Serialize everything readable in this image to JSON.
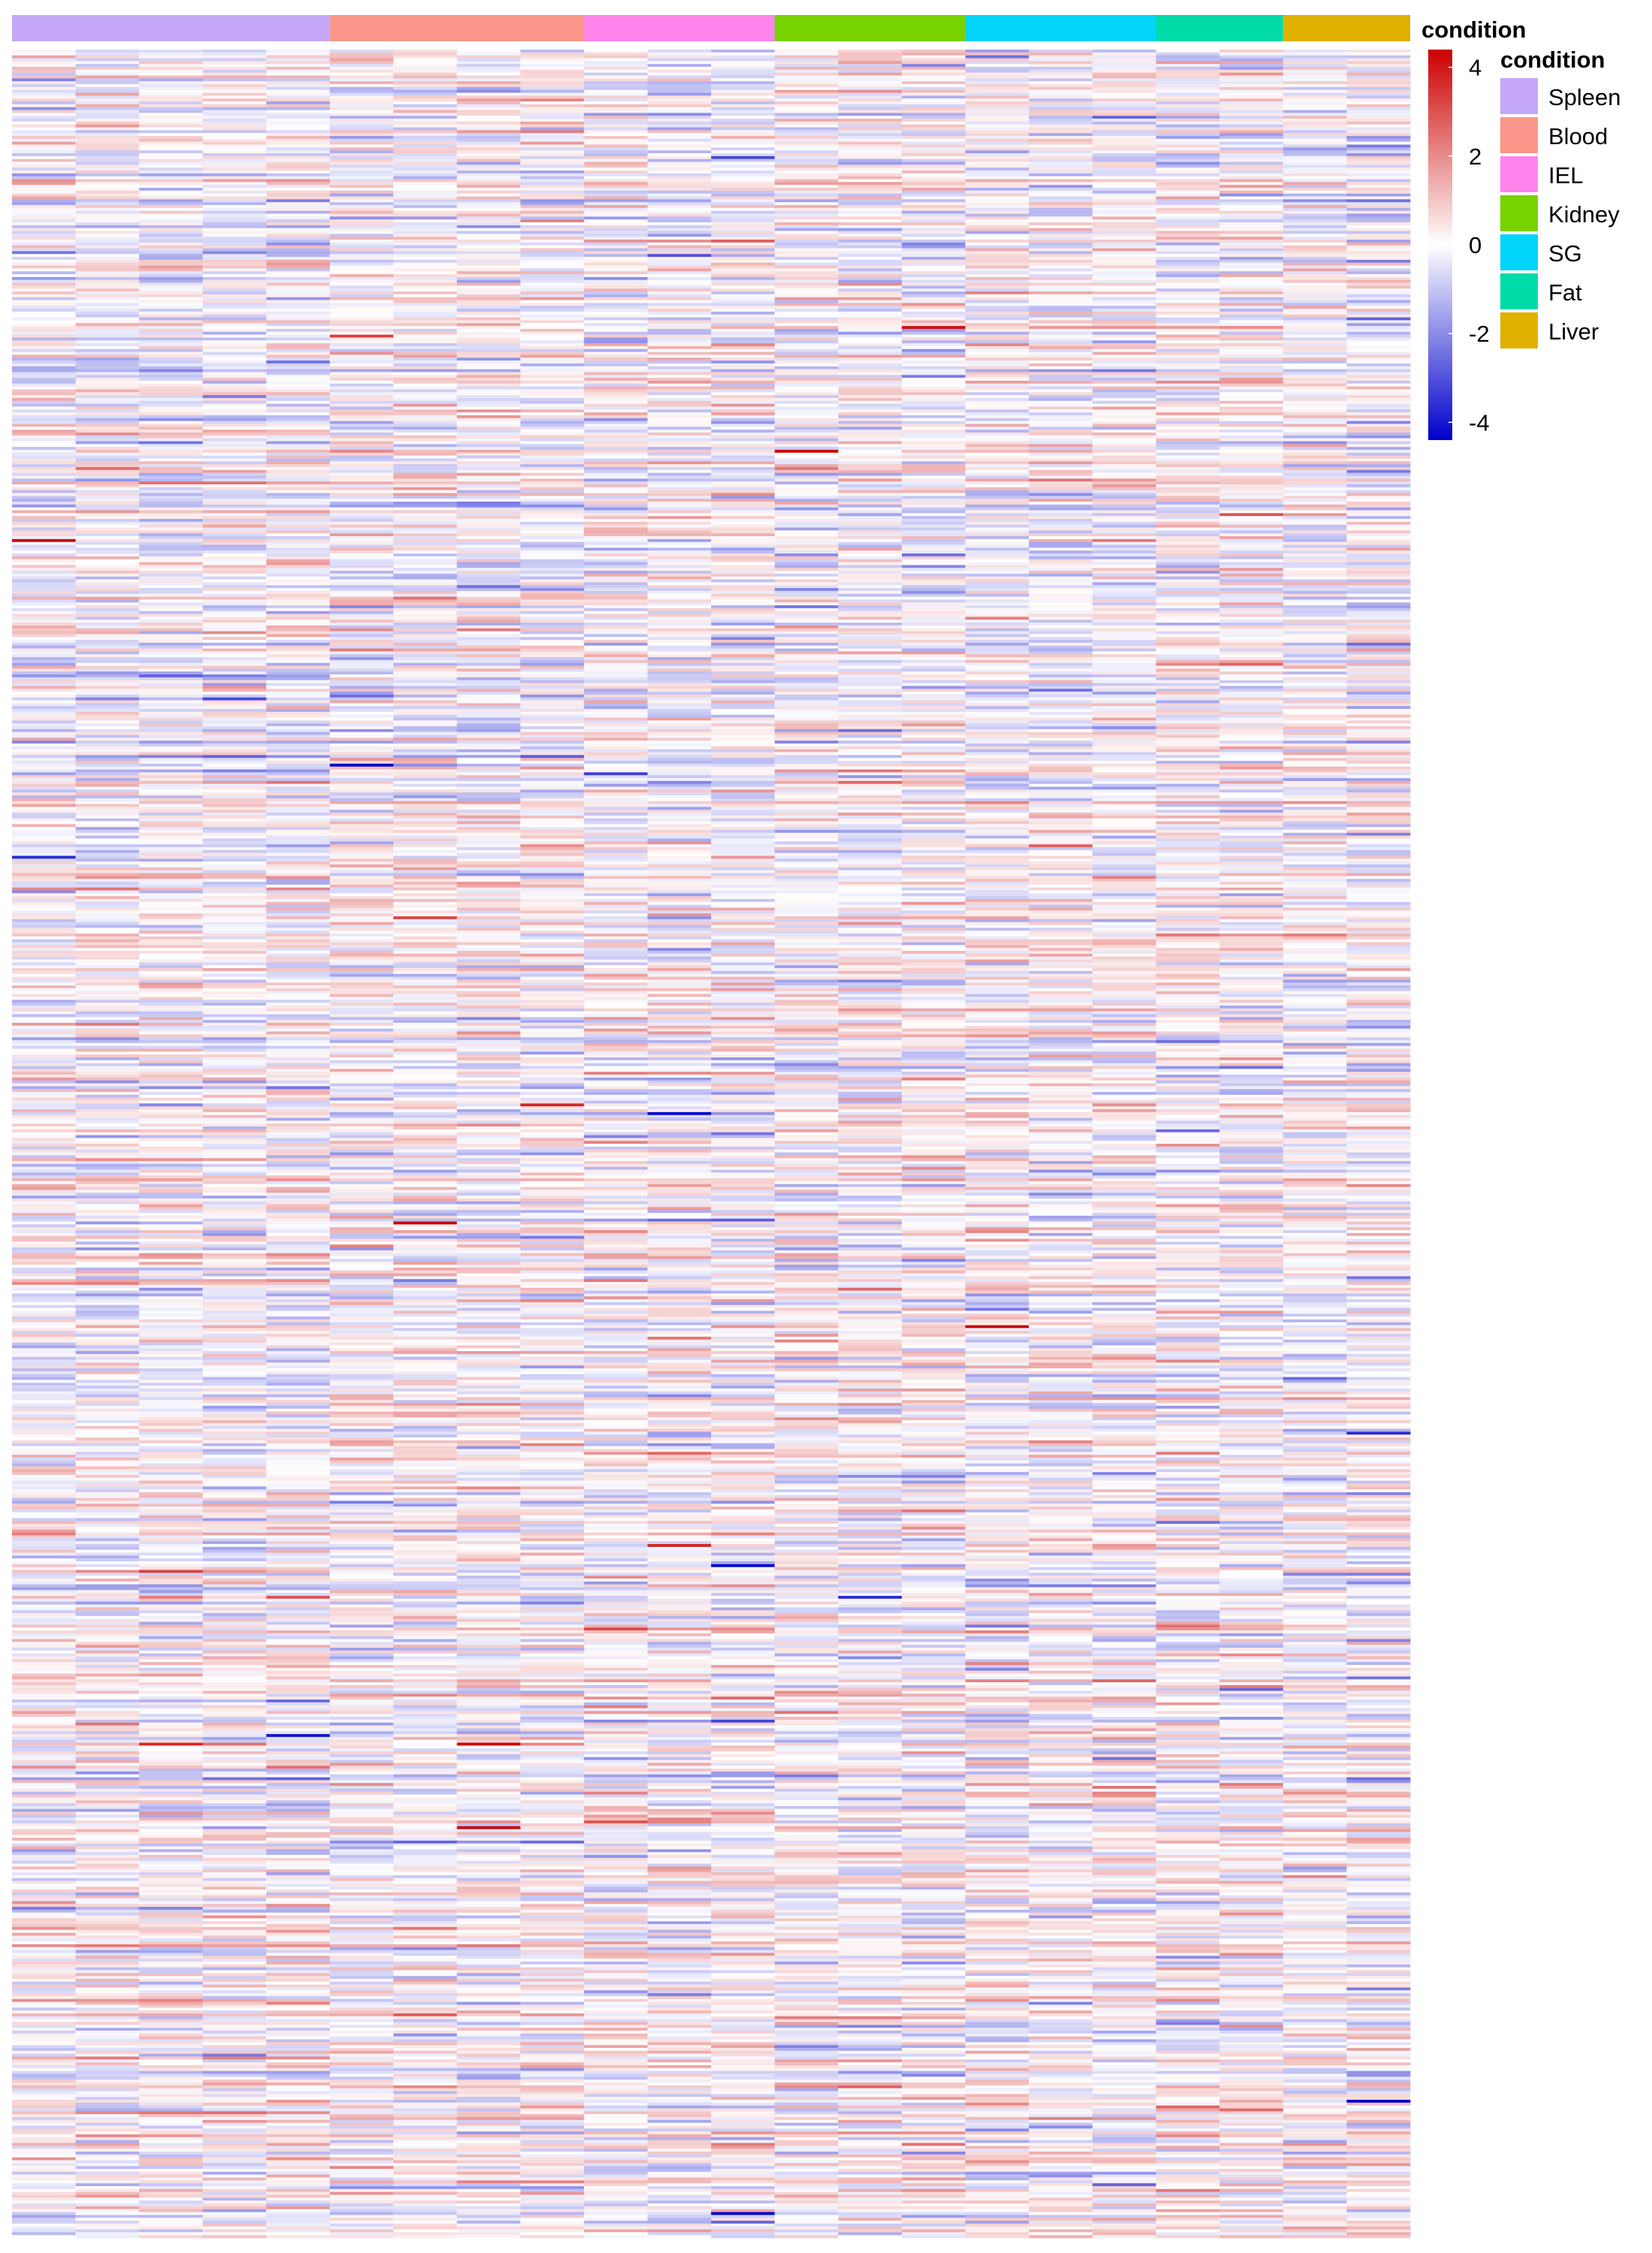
{
  "chart_data": {
    "type": "heatmap",
    "title": "",
    "xlabel": "",
    "ylabel": "",
    "n_rows": 760,
    "columns": [
      {
        "condition": "Spleen"
      },
      {
        "condition": "Spleen"
      },
      {
        "condition": "Spleen"
      },
      {
        "condition": "Spleen"
      },
      {
        "condition": "Spleen"
      },
      {
        "condition": "Blood"
      },
      {
        "condition": "Blood"
      },
      {
        "condition": "Blood"
      },
      {
        "condition": "Blood"
      },
      {
        "condition": "IEL"
      },
      {
        "condition": "IEL"
      },
      {
        "condition": "IEL"
      },
      {
        "condition": "Kidney"
      },
      {
        "condition": "Kidney"
      },
      {
        "condition": "Kidney"
      },
      {
        "condition": "SG"
      },
      {
        "condition": "SG"
      },
      {
        "condition": "SG"
      },
      {
        "condition": "Fat"
      },
      {
        "condition": "Fat"
      },
      {
        "condition": "Liver"
      },
      {
        "condition": "Liver"
      }
    ],
    "column_annotation": {
      "title": "condition",
      "groups": [
        {
          "name": "Spleen",
          "color": "#C5A8F7",
          "n_columns": 5
        },
        {
          "name": "Blood",
          "color": "#FA968A",
          "n_columns": 4
        },
        {
          "name": "IEL",
          "color": "#FF84EC",
          "n_columns": 3
        },
        {
          "name": "Kidney",
          "color": "#77D200",
          "n_columns": 3
        },
        {
          "name": "SG",
          "color": "#00D5F9",
          "n_columns": 3
        },
        {
          "name": "Fat",
          "color": "#00DBA9",
          "n_columns": 2
        },
        {
          "name": "Liver",
          "color": "#E0B000",
          "n_columns": 2
        }
      ]
    },
    "color_scale": {
      "title": "condition",
      "min": -4.4,
      "max": 4.4,
      "low_color": "#0000CC",
      "mid_color": "#FFFFFF",
      "high_color": "#CC0000",
      "ticks": [
        4,
        2,
        0,
        -2,
        -4
      ],
      "tick_labels": [
        "4",
        "2",
        "0",
        "-2",
        "-4"
      ]
    },
    "value_distribution_note": "row-scaled z-scores, mostly within -2..2, occasional extremes near ±4"
  },
  "legend": {
    "colorbar_title": "condition",
    "annotation_title": "condition",
    "items": [
      "Spleen",
      "Blood",
      "IEL",
      "Kidney",
      "SG",
      "Fat",
      "Liver"
    ]
  }
}
